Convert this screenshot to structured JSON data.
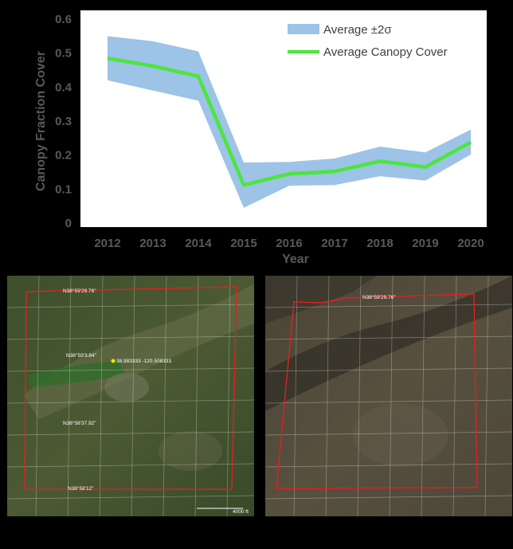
{
  "chart_data": {
    "type": "line",
    "x": [
      2012,
      2013,
      2014,
      2015,
      2016,
      2017,
      2018,
      2019,
      2020
    ],
    "series": [
      {
        "name": "Average Canopy Cover",
        "values": [
          0.485,
          0.462,
          0.432,
          0.112,
          0.145,
          0.152,
          0.182,
          0.165,
          0.238
        ]
      }
    ],
    "band": {
      "name": "Average ±2σ",
      "lower": [
        0.42,
        0.39,
        0.36,
        0.045,
        0.11,
        0.112,
        0.138,
        0.125,
        0.202
      ],
      "upper": [
        0.55,
        0.535,
        0.505,
        0.178,
        0.18,
        0.19,
        0.225,
        0.208,
        0.275
      ]
    },
    "xlabel": "Year",
    "ylabel": "Canopy Fraction Cover",
    "ylim": [
      0,
      0.6
    ],
    "yticks": [
      "0",
      "0.1",
      "0.2",
      "0.3",
      "0.4",
      "0.5",
      "0.6"
    ],
    "xticks": [
      "2012",
      "2013",
      "2014",
      "2015",
      "2016",
      "2017",
      "2018",
      "2019",
      "2020"
    ],
    "legend_position": "top-right",
    "grid": false,
    "colors": {
      "line": "#4ce63c",
      "band": "#9dc3e6"
    }
  },
  "maps": {
    "left": {
      "labels": [
        "N38°59'29.76\"",
        "N38°59'3.84\"",
        "N38°58'37.92\"",
        "N38°58'12\""
      ],
      "marker_label": "38.983333 -120.508333",
      "scale_label": "4000 ft"
    },
    "right": {
      "labels": [
        "N38°59'29.76\""
      ]
    }
  }
}
